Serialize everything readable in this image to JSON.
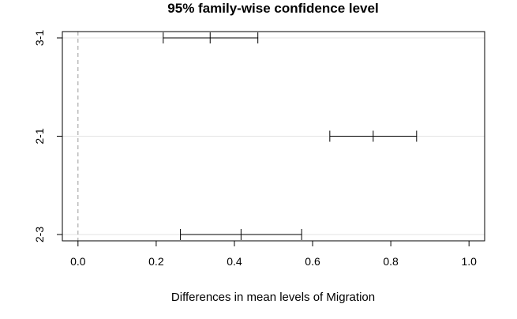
{
  "chart_data": {
    "type": "errorbar",
    "title": "95% family-wise confidence level",
    "xlabel": "Differences in mean levels of Migration",
    "ylabel": "",
    "xlim": [
      -0.04,
      1.04
    ],
    "x_ticks": [
      0.0,
      0.2,
      0.4,
      0.6,
      0.8,
      1.0
    ],
    "x_tick_labels": [
      "0.0",
      "0.2",
      "0.4",
      "0.6",
      "0.8",
      "1.0"
    ],
    "reference_line": 0.0,
    "grid": true,
    "comparisons": [
      {
        "label": "3-1",
        "lower": 0.218,
        "estimate": 0.338,
        "upper": 0.46
      },
      {
        "label": "2-1",
        "lower": 0.644,
        "estimate": 0.755,
        "upper": 0.866
      },
      {
        "label": "2-3",
        "lower": 0.262,
        "estimate": 0.417,
        "upper": 0.572
      }
    ]
  }
}
